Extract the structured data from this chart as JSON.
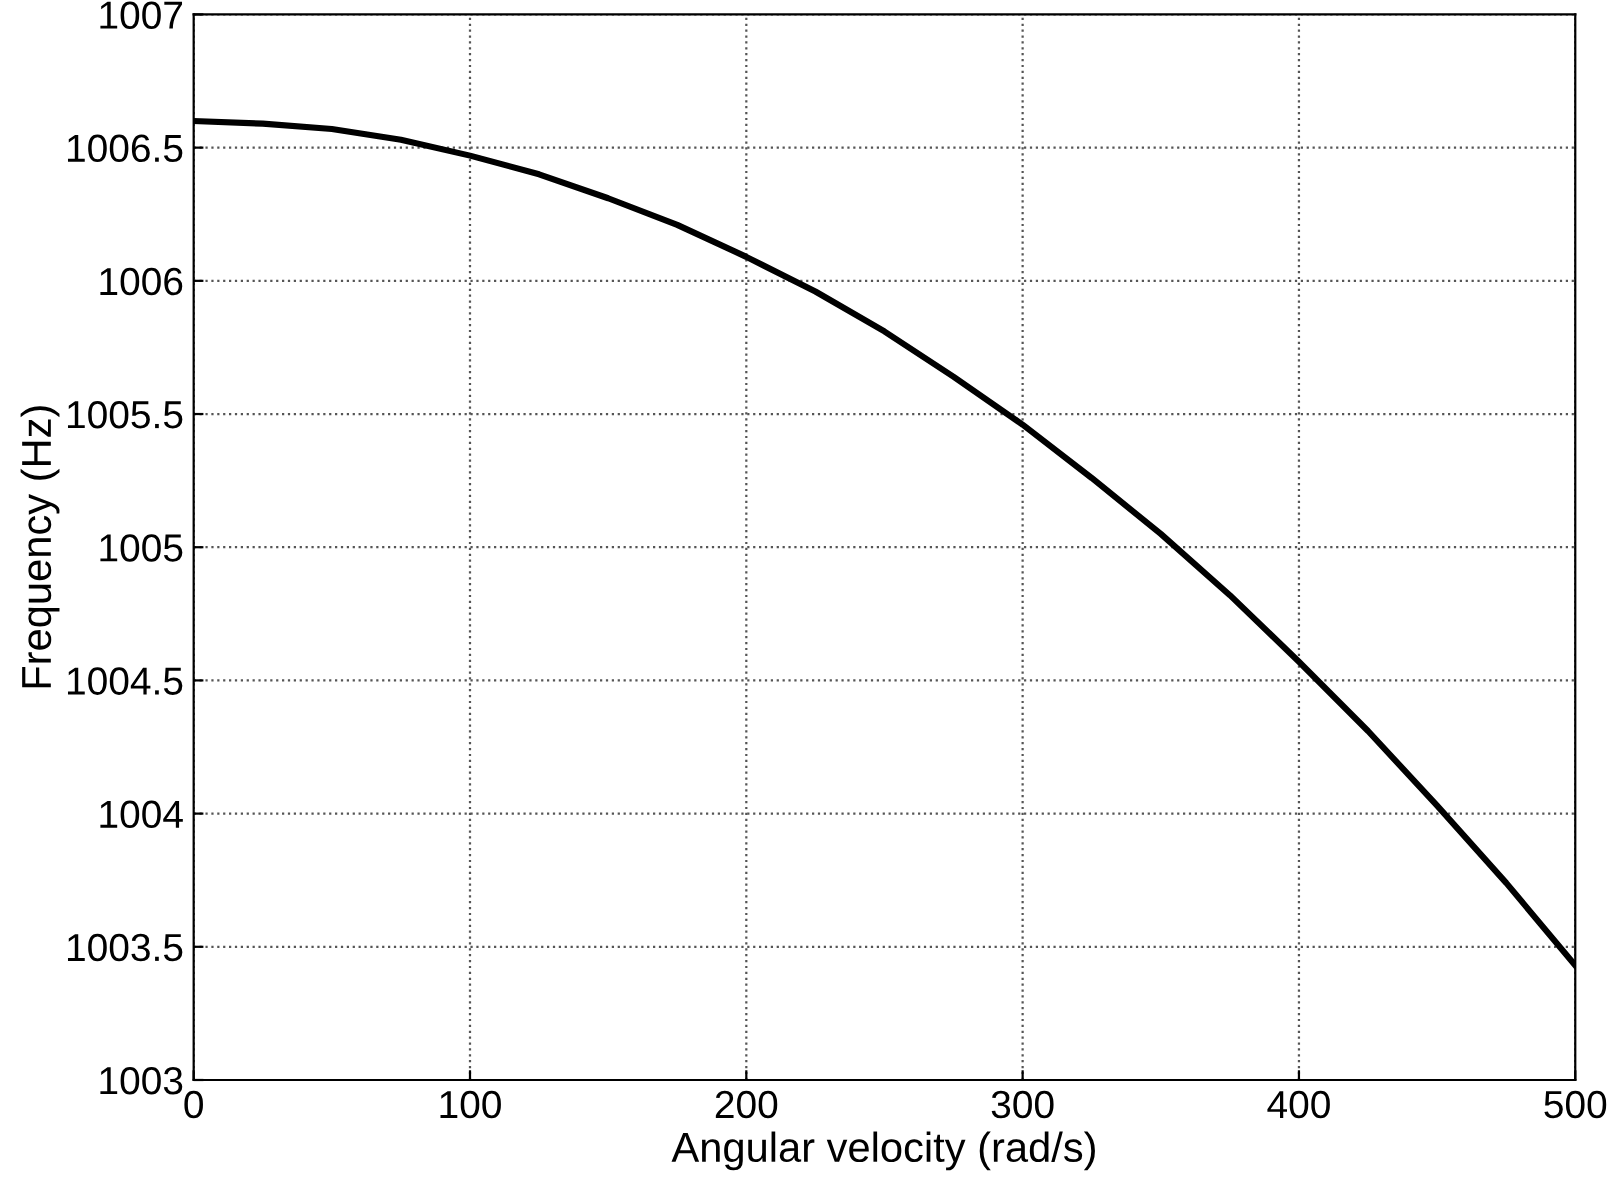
{
  "chart_data": {
    "type": "line",
    "xlabel": "Angular velocity (rad/s)",
    "ylabel": "Frequency (Hz)",
    "x": [
      0,
      25,
      50,
      75,
      100,
      125,
      150,
      175,
      200,
      225,
      250,
      275,
      300,
      325,
      350,
      375,
      400,
      425,
      450,
      475,
      500
    ],
    "series": [
      {
        "color": "#000000",
        "values": [
          1006.6,
          1006.59,
          1006.57,
          1006.53,
          1006.47,
          1006.4,
          1006.31,
          1006.21,
          1006.09,
          1005.96,
          1005.81,
          1005.64,
          1005.46,
          1005.26,
          1005.05,
          1004.82,
          1004.57,
          1004.31,
          1004.03,
          1003.74,
          1003.43
        ]
      }
    ],
    "xlim": [
      0,
      500
    ],
    "ylim": [
      1003,
      1007
    ],
    "xticks": [
      0,
      100,
      200,
      300,
      400,
      500
    ],
    "yticks": [
      1003,
      1003.5,
      1004,
      1004.5,
      1005,
      1005.5,
      1006,
      1006.5,
      1007
    ],
    "grid": true,
    "line_style": "solid"
  }
}
